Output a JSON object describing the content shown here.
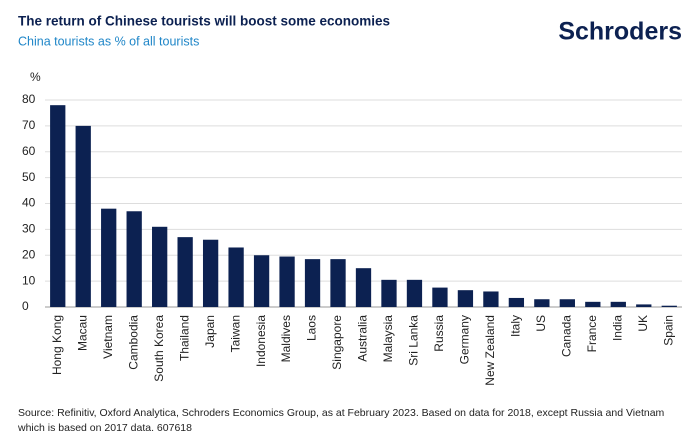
{
  "chart_data": {
    "type": "bar",
    "title": "The return of Chinese tourists will boost some economies",
    "subtitle": "China tourists as % of all tourists",
    "brand": "Schroders",
    "y_label": "%",
    "categories": [
      "Hong Kong",
      "Macau",
      "Vietnam",
      "Cambodia",
      "South Korea",
      "Thailand",
      "Japan",
      "Taiwan",
      "Indonesia",
      "Maldives",
      "Laos",
      "Singapore",
      "Australia",
      "Malaysia",
      "Sri Lanka",
      "Russia",
      "Germany",
      "New Zealand",
      "Italy",
      "US",
      "Canada",
      "France",
      "India",
      "UK",
      "Spain"
    ],
    "values": [
      78,
      70,
      38,
      37,
      31,
      27,
      26,
      23,
      20,
      19.5,
      18.5,
      18.5,
      15,
      10.5,
      10.5,
      7.5,
      6.5,
      6,
      3.5,
      3,
      3,
      2,
      2,
      1,
      0.5
    ],
    "color": "#0c2151",
    "ylim": [
      0,
      80
    ],
    "yticks": [
      0,
      10,
      20,
      30,
      40,
      50,
      60,
      70,
      80
    ],
    "grid": true,
    "source": "Source: Refinitiv, Oxford Analytica, Schroders Economics Group, as at February 2023. Based on data for 2018, except Russia and Vietnam which is based on 2017 data. 607618"
  }
}
